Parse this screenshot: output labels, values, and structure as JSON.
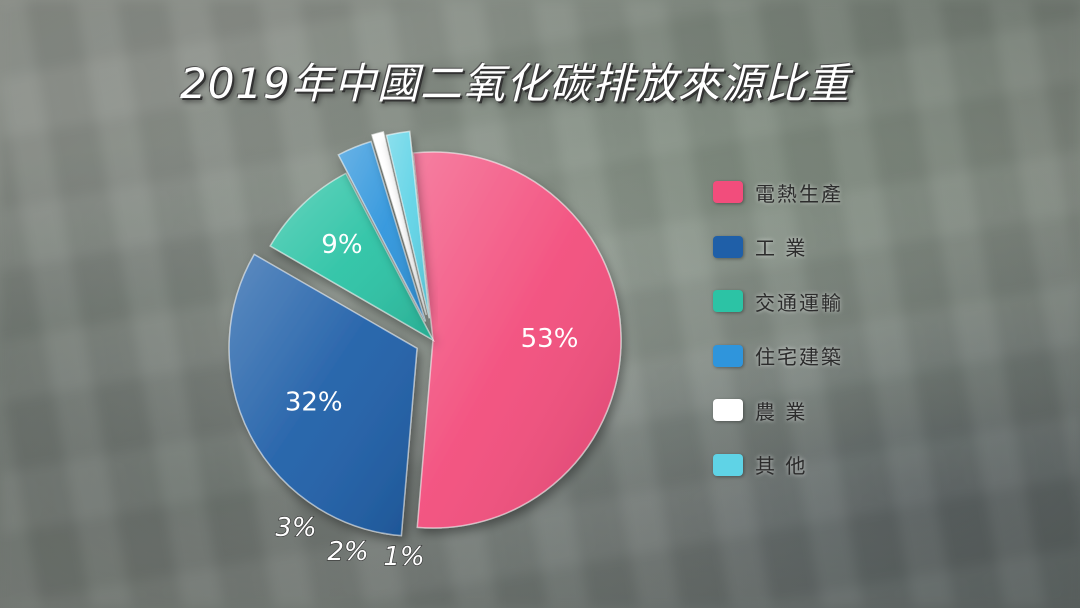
{
  "title": "2019年中國二氧化碳排放來源比重",
  "chart_data": {
    "type": "pie",
    "title": "2019年中國二氧化碳排放來源比重",
    "categories": [
      "電熱生產",
      "工 業",
      "交通運輸",
      "住宅建築",
      "農 業",
      "其 他"
    ],
    "values": [
      53,
      32,
      9,
      3,
      1,
      2
    ],
    "value_labels": [
      "53%",
      "32%",
      "9%",
      "3%",
      "1%",
      "2%"
    ],
    "colors": [
      "#f24d7c",
      "#1f5fa8",
      "#2cc3a5",
      "#2f95dc",
      "#ffffff",
      "#5fd3e6"
    ],
    "legend_position": "right"
  }
}
